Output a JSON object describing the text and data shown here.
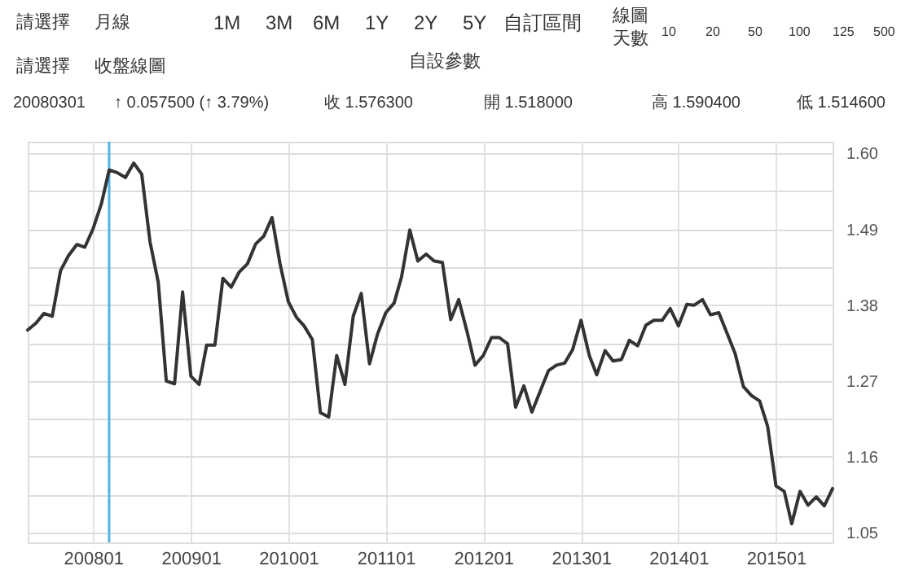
{
  "chart_data": {
    "type": "line",
    "annotations": [
      "請選擇",
      "月線",
      "1M",
      "3M",
      "6M",
      "1Y",
      "2Y",
      "5Y",
      "自訂區間",
      "線圖",
      "天數",
      "10",
      "20",
      "50",
      "100",
      "125",
      "500",
      "請選擇",
      "收盤線圖",
      "自設參數",
      "20080301",
      "↑ 0.057500 (↑ 3.79%)",
      "收 1.576300",
      "開 1.518000",
      "高 1.590400",
      "低 1.514600"
    ],
    "x": [
      "2007-05",
      "2007-06",
      "2007-07",
      "2007-08",
      "2007-09",
      "2007-10",
      "2007-11",
      "2007-12",
      "2008-01",
      "2008-02",
      "2008-03",
      "2008-04",
      "2008-05",
      "2008-06",
      "2008-07",
      "2008-08",
      "2008-09",
      "2008-10",
      "2008-11",
      "2008-12",
      "2009-01",
      "2009-02",
      "2009-03",
      "2009-04",
      "2009-05",
      "2009-06",
      "2009-07",
      "2009-08",
      "2009-09",
      "2009-10",
      "2009-11",
      "2009-12",
      "2010-01",
      "2010-02",
      "2010-03",
      "2010-04",
      "2010-05",
      "2010-06",
      "2010-07",
      "2010-08",
      "2010-09",
      "2010-10",
      "2010-11",
      "2010-12",
      "2011-01",
      "2011-02",
      "2011-03",
      "2011-04",
      "2011-05",
      "2011-06",
      "2011-07",
      "2011-08",
      "2011-09",
      "2011-10",
      "2011-11",
      "2011-12",
      "2012-01",
      "2012-02",
      "2012-03",
      "2012-04",
      "2012-05",
      "2012-06",
      "2012-07",
      "2012-08",
      "2012-09",
      "2012-10",
      "2012-11",
      "2012-12",
      "2013-01",
      "2013-02",
      "2013-03",
      "2013-04",
      "2013-05",
      "2013-06",
      "2013-07",
      "2013-08",
      "2013-09",
      "2013-10",
      "2013-11",
      "2013-12",
      "2014-01",
      "2014-02",
      "2014-03",
      "2014-04",
      "2014-05",
      "2014-06",
      "2014-07",
      "2014-08",
      "2014-09",
      "2014-10",
      "2014-11",
      "2014-12",
      "2015-01",
      "2015-02",
      "2015-03",
      "2015-04",
      "2015-05",
      "2015-06",
      "2015-07",
      "2015-08"
    ],
    "series": [
      {
        "color": "#333333",
        "values": [
          1.344,
          1.354,
          1.368,
          1.364,
          1.43,
          1.452,
          1.468,
          1.464,
          1.491,
          1.527,
          1.576,
          1.572,
          1.565,
          1.586,
          1.57,
          1.472,
          1.413,
          1.27,
          1.266,
          1.399,
          1.277,
          1.265,
          1.322,
          1.322,
          1.419,
          1.406,
          1.428,
          1.44,
          1.469,
          1.48,
          1.507,
          1.44,
          1.385,
          1.362,
          1.35,
          1.33,
          1.224,
          1.218,
          1.307,
          1.265,
          1.364,
          1.397,
          1.295,
          1.338,
          1.369,
          1.383,
          1.421,
          1.489,
          1.444,
          1.454,
          1.444,
          1.442,
          1.359,
          1.388,
          1.342,
          1.293,
          1.307,
          1.333,
          1.333,
          1.324,
          1.232,
          1.263,
          1.225,
          1.255,
          1.285,
          1.293,
          1.296,
          1.316,
          1.358,
          1.307,
          1.279,
          1.314,
          1.299,
          1.301,
          1.329,
          1.321,
          1.351,
          1.358,
          1.358,
          1.375,
          1.35,
          1.381,
          1.38,
          1.388,
          1.366,
          1.369,
          1.34,
          1.31,
          1.262,
          1.249,
          1.241,
          1.204,
          1.118,
          1.11,
          1.063,
          1.11,
          1.09,
          1.102,
          1.089,
          1.114
        ]
      }
    ],
    "xlim": [
      "2007-05",
      "2015-08"
    ],
    "xticks": [
      {
        "value": "2008-01",
        "label": "200801"
      },
      {
        "value": "2009-01",
        "label": "200901"
      },
      {
        "value": "2010-01",
        "label": "201001"
      },
      {
        "value": "2011-01",
        "label": "201101"
      },
      {
        "value": "2012-01",
        "label": "201201"
      },
      {
        "value": "2013-01",
        "label": "201301"
      },
      {
        "value": "2014-01",
        "label": "201401"
      },
      {
        "value": "2015-01",
        "label": "201501"
      }
    ],
    "ylim": [
      1.036,
      1.617
    ],
    "yticks": [
      {
        "value": 1.05,
        "label": "1.05"
      },
      {
        "value": 1.105,
        "label": null
      },
      {
        "value": 1.16,
        "label": "1.16"
      },
      {
        "value": 1.215,
        "label": null
      },
      {
        "value": 1.27,
        "label": "1.27"
      },
      {
        "value": 1.325,
        "label": null
      },
      {
        "value": 1.38,
        "label": "1.38"
      },
      {
        "value": 1.435,
        "label": null
      },
      {
        "value": 1.49,
        "label": "1.49"
      },
      {
        "value": 1.545,
        "label": null
      },
      {
        "value": 1.6,
        "label": "1.60"
      }
    ],
    "ref_lines": [
      {
        "axis": "x",
        "value": "2008-03",
        "label": null,
        "color": "#4fb3e8"
      }
    ],
    "grid": true,
    "marker": "none",
    "line_style": "solid"
  }
}
